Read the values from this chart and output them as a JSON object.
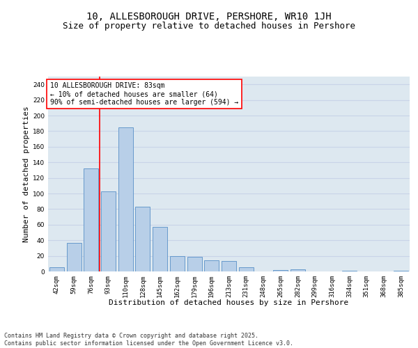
{
  "title_line1": "10, ALLESBOROUGH DRIVE, PERSHORE, WR10 1JH",
  "title_line2": "Size of property relative to detached houses in Pershore",
  "xlabel": "Distribution of detached houses by size in Pershore",
  "ylabel": "Number of detached properties",
  "categories": [
    "42sqm",
    "59sqm",
    "76sqm",
    "93sqm",
    "110sqm",
    "128sqm",
    "145sqm",
    "162sqm",
    "179sqm",
    "196sqm",
    "213sqm",
    "231sqm",
    "248sqm",
    "265sqm",
    "282sqm",
    "299sqm",
    "316sqm",
    "334sqm",
    "351sqm",
    "368sqm",
    "385sqm"
  ],
  "values": [
    5,
    37,
    132,
    103,
    185,
    83,
    57,
    20,
    19,
    14,
    13,
    5,
    0,
    2,
    3,
    0,
    0,
    1,
    0,
    0,
    1
  ],
  "bar_color": "#b8cfe8",
  "bar_edgecolor": "#6699cc",
  "bar_linewidth": 0.7,
  "vline_x": 2.5,
  "vline_color": "red",
  "vline_linewidth": 1.2,
  "annotation_text": "10 ALLESBOROUGH DRIVE: 83sqm\n← 10% of detached houses are smaller (64)\n90% of semi-detached houses are larger (594) →",
  "annotation_box_edgecolor": "red",
  "annotation_box_facecolor": "white",
  "ylim": [
    0,
    250
  ],
  "yticks": [
    0,
    20,
    40,
    60,
    80,
    100,
    120,
    140,
    160,
    180,
    200,
    220,
    240
  ],
  "grid_color": "#c8d4e8",
  "background_color": "#dde8f0",
  "footer_text": "Contains HM Land Registry data © Crown copyright and database right 2025.\nContains public sector information licensed under the Open Government Licence v3.0.",
  "title_fontsize": 10,
  "subtitle_fontsize": 9,
  "axis_label_fontsize": 8,
  "tick_fontsize": 6.5,
  "annotation_fontsize": 7,
  "footer_fontsize": 6
}
